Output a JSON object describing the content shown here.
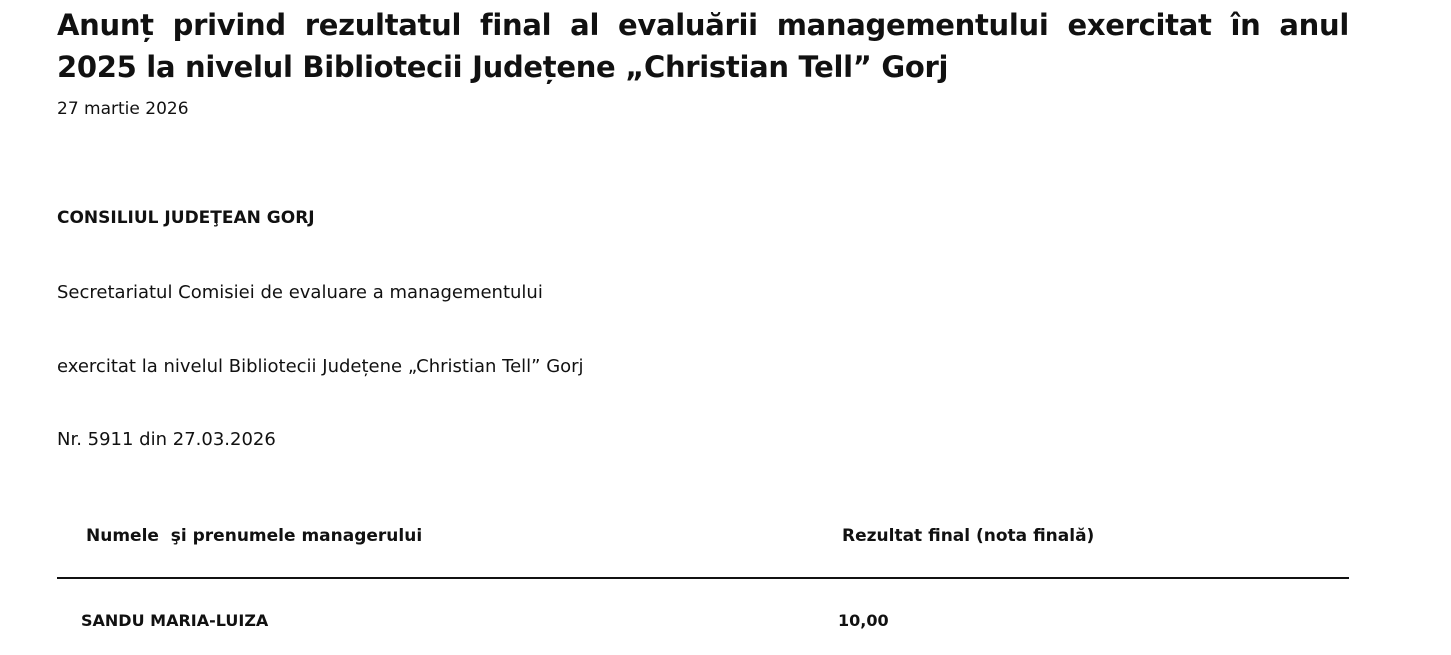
{
  "article": {
    "title": "Anunț privind rezultatul final al evaluării managementului exercitat în anul 2025 la nivelul Bibliotecii Județene „Christian Tell” Gorj",
    "date": "27 martie 2026",
    "institution": "CONSILIUL JUDEŢEAN GORJ",
    "line1": "Secretariatul Comisiei de evaluare a managementului",
    "line2": "exercitat la nivelul Bibliotecii Județene „Christian Tell” Gorj",
    "number": "Nr. 5911 din 27.03.2026"
  },
  "table": {
    "headers": [
      "Numele  şi prenumele managerului",
      "Rezultat final (nota finală)"
    ],
    "rows": [
      [
        "SANDU MARIA-LUIZA",
        "10,00"
      ]
    ]
  }
}
